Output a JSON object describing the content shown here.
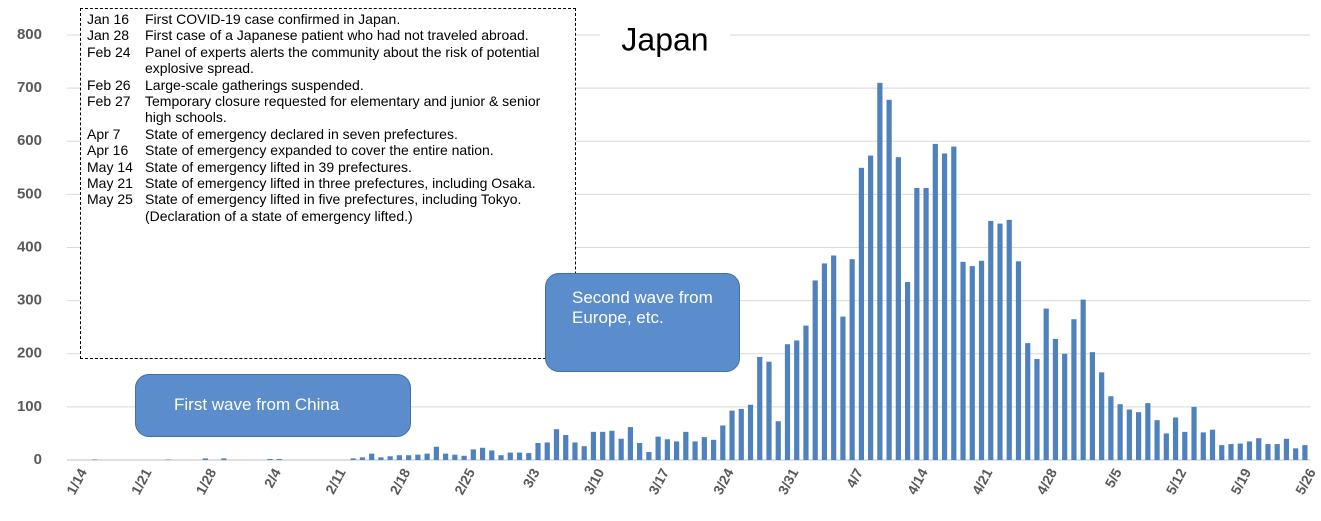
{
  "chart_data": {
    "type": "bar",
    "title": "Japan",
    "categories": [
      "1/14",
      null,
      null,
      null,
      null,
      null,
      null,
      "1/21",
      null,
      null,
      null,
      null,
      null,
      null,
      "1/28",
      null,
      null,
      null,
      null,
      null,
      null,
      "2/4",
      null,
      null,
      null,
      null,
      null,
      null,
      "2/11",
      null,
      null,
      null,
      null,
      null,
      null,
      "2/18",
      null,
      null,
      null,
      null,
      null,
      null,
      "2/25",
      null,
      null,
      null,
      null,
      null,
      null,
      "3/3",
      null,
      null,
      null,
      null,
      null,
      null,
      "3/10",
      null,
      null,
      null,
      null,
      null,
      null,
      "3/17",
      null,
      null,
      null,
      null,
      null,
      null,
      "3/24",
      null,
      null,
      null,
      null,
      null,
      null,
      "3/31",
      null,
      null,
      null,
      null,
      null,
      null,
      "4/7",
      null,
      null,
      null,
      null,
      null,
      null,
      "4/14",
      null,
      null,
      null,
      null,
      null,
      null,
      "4/21",
      null,
      null,
      null,
      null,
      null,
      null,
      "4/28",
      null,
      null,
      null,
      null,
      null,
      null,
      "5/5",
      null,
      null,
      null,
      null,
      null,
      null,
      "5/12",
      null,
      null,
      null,
      null,
      null,
      null,
      "5/19",
      null,
      null,
      null,
      null,
      null,
      null,
      "5/26"
    ],
    "values": [
      0,
      0,
      1,
      0,
      0,
      0,
      0,
      0,
      0,
      0,
      1,
      0,
      0,
      0,
      3,
      0,
      3,
      0,
      0,
      0,
      0,
      2,
      2,
      0,
      0,
      0,
      0,
      0,
      0,
      0,
      3,
      5,
      12,
      5,
      7,
      9,
      9,
      10,
      12,
      25,
      12,
      10,
      8,
      20,
      23,
      18,
      9,
      14,
      14,
      13,
      32,
      33,
      58,
      47,
      33,
      26,
      53,
      53,
      55,
      40,
      62,
      32,
      15,
      44,
      39,
      35,
      53,
      35,
      43,
      38,
      65,
      93,
      96,
      104,
      194,
      185,
      73,
      218,
      225,
      253,
      338,
      370,
      385,
      270,
      378,
      550,
      573,
      710,
      678,
      570,
      335,
      512,
      512,
      595,
      577,
      590,
      373,
      365,
      375,
      450,
      445,
      452,
      374,
      220,
      190,
      285,
      228,
      200,
      265,
      302,
      203,
      165,
      120,
      105,
      95,
      90,
      107,
      75,
      50,
      80,
      53,
      100,
      52,
      57,
      28,
      30,
      31,
      35,
      41,
      30,
      30,
      40,
      22,
      28
    ],
    "color": "#4f81bd",
    "ylim": [
      0,
      800
    ],
    "yticks": [
      0,
      100,
      200,
      300,
      400,
      500,
      600,
      700,
      800
    ],
    "grid": true,
    "annotations": [
      "Second wave from Europe, etc.",
      "First wave from China"
    ],
    "events": [
      {
        "date": "Jan 16",
        "text": "First COVID-19 case confirmed in Japan."
      },
      {
        "date": "Jan 28",
        "text": "First case of a Japanese patient who had not traveled abroad."
      },
      {
        "date": "Feb 24",
        "text": "Panel of experts alerts the community about the risk of potential explosive spread."
      },
      {
        "date": "Feb 26",
        "text": "Large-scale gatherings suspended."
      },
      {
        "date": "Feb 27",
        "text": "Temporary closure requested for elementary and junior & senior high schools."
      },
      {
        "date": "Apr 7",
        "text": "State of emergency declared in seven prefectures."
      },
      {
        "date": "Apr 16",
        "text": "State of emergency expanded to cover the entire nation."
      },
      {
        "date": "May 14",
        "text": "State of emergency lifted in 39 prefectures."
      },
      {
        "date": "May 21",
        "text": "State of emergency lifted in three prefectures, including Osaka."
      },
      {
        "date": "May 25",
        "text": "State of emergency lifted in five prefectures, including Tokyo."
      }
    ],
    "events_note": "(Declaration of a state of emergency lifted.)"
  }
}
